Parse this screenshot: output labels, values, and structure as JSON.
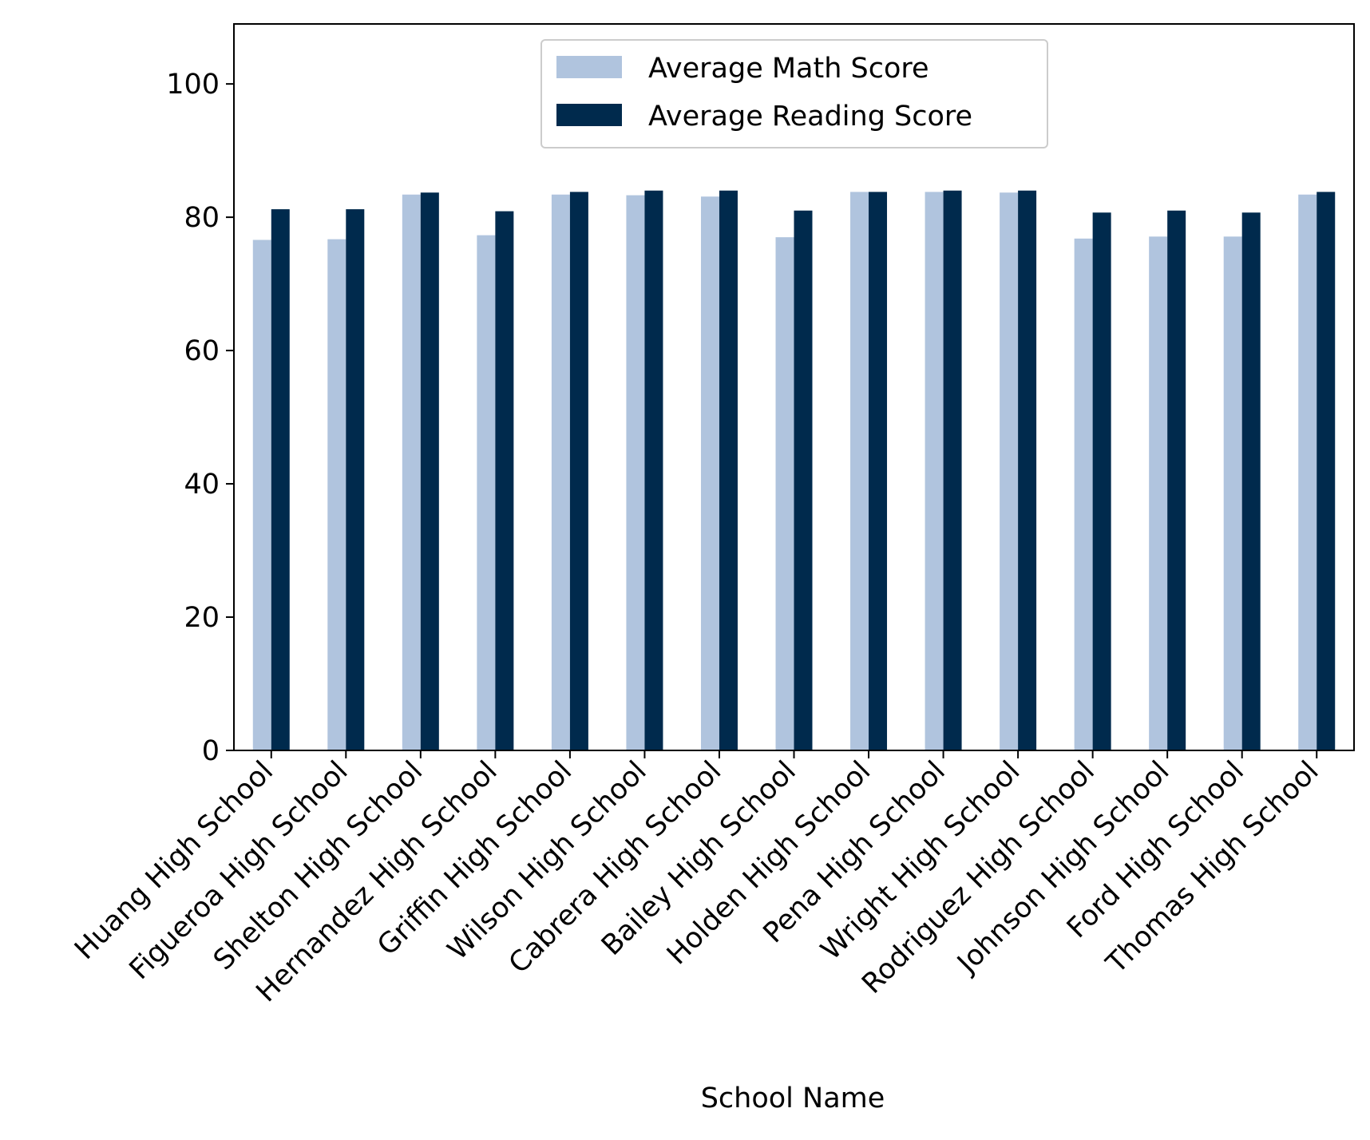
{
  "chart_data": {
    "type": "bar",
    "title": "",
    "xlabel": "School Name",
    "ylabel": "",
    "ylim": [
      0,
      109
    ],
    "yticks": [
      0,
      20,
      40,
      60,
      80,
      100
    ],
    "grid": false,
    "legend_position": "upper-center",
    "categories": [
      "Huang High School",
      "Figueroa High School",
      "Shelton High School",
      "Hernandez High School",
      "Griffin High School",
      "Wilson High School",
      "Cabrera High School",
      "Bailey High School",
      "Holden High School",
      "Pena High School",
      "Wright High School",
      "Rodriguez High School",
      "Johnson High School",
      "Ford High School",
      "Thomas High School"
    ],
    "series": [
      {
        "name": "Average Math Score",
        "color": "#b0c4de",
        "values": [
          76.6,
          76.7,
          83.4,
          77.3,
          83.4,
          83.3,
          83.1,
          77.0,
          83.8,
          83.8,
          83.7,
          76.8,
          77.1,
          77.1,
          83.4
        ]
      },
      {
        "name": "Average Reading Score",
        "color": "#002a4d",
        "values": [
          81.2,
          81.2,
          83.7,
          80.9,
          83.8,
          84.0,
          84.0,
          81.0,
          83.8,
          84.0,
          84.0,
          80.7,
          81.0,
          80.7,
          83.8
        ]
      }
    ]
  }
}
